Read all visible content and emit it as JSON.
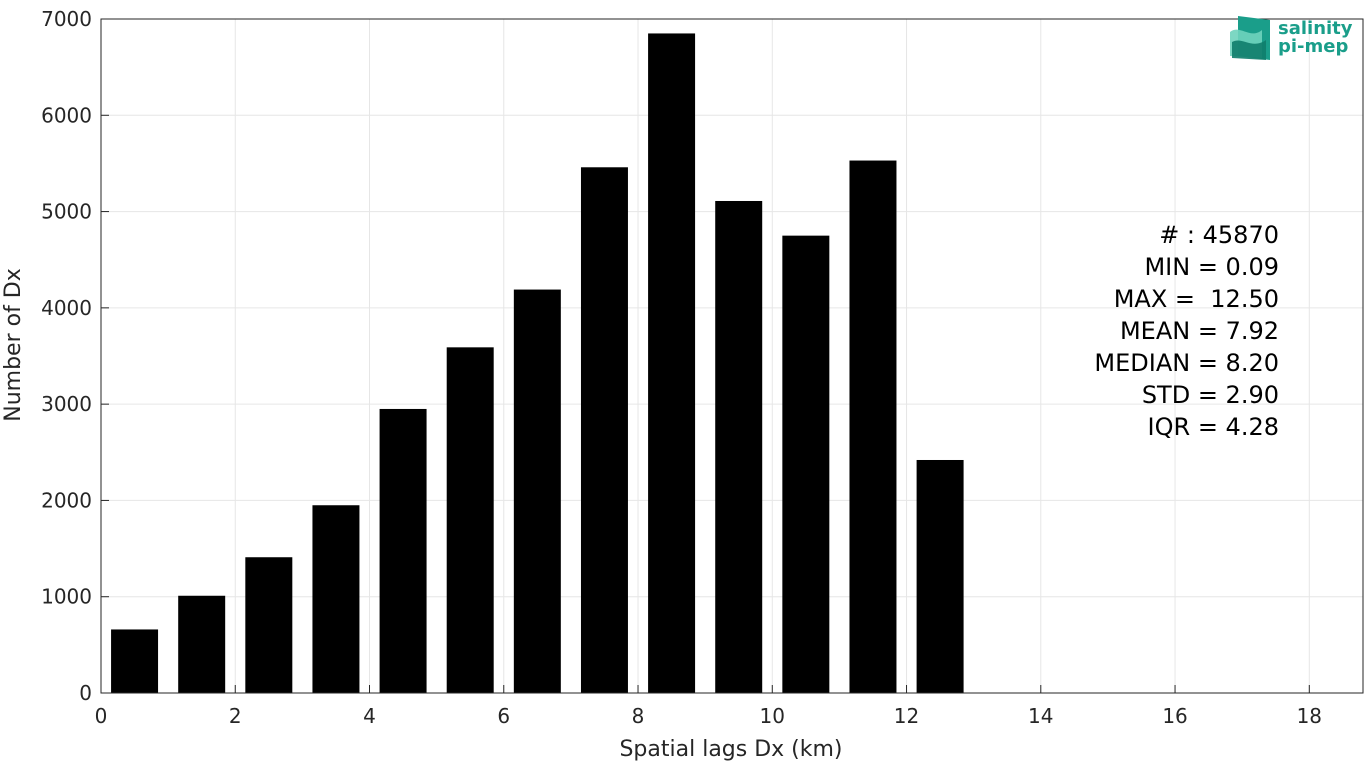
{
  "chart_data": {
    "type": "bar",
    "x": [
      0.5,
      1.5,
      2.5,
      3.5,
      4.5,
      5.5,
      6.5,
      7.5,
      8.5,
      9.5,
      10.5,
      11.5,
      12.5
    ],
    "values": [
      660,
      1010,
      1410,
      1950,
      2950,
      3590,
      4190,
      5460,
      6850,
      5110,
      4750,
      5530,
      2420
    ],
    "bar_width": 0.7,
    "xlabel": "Spatial lags Dx (km)",
    "ylabel": "Number of Dx",
    "xlim": [
      0,
      18.8
    ],
    "ylim": [
      0,
      7000
    ],
    "xticks": [
      "0",
      "2",
      "4",
      "6",
      "8",
      "10",
      "12",
      "14",
      "16",
      "18"
    ],
    "yticks": [
      "0",
      "1000",
      "2000",
      "3000",
      "4000",
      "5000",
      "6000",
      "7000"
    ],
    "grid": true,
    "bar_color": "#000000",
    "annotations": [
      "# : 45870",
      "MIN = 0.09",
      "MAX =  12.50",
      "MEAN = 7.92",
      "MEDIAN = 8.20",
      "STD = 2.90",
      "IQR = 4.28"
    ]
  },
  "logo": {
    "line1": "salinity",
    "line2": "pi-mep",
    "color": "#1a9e8a"
  }
}
